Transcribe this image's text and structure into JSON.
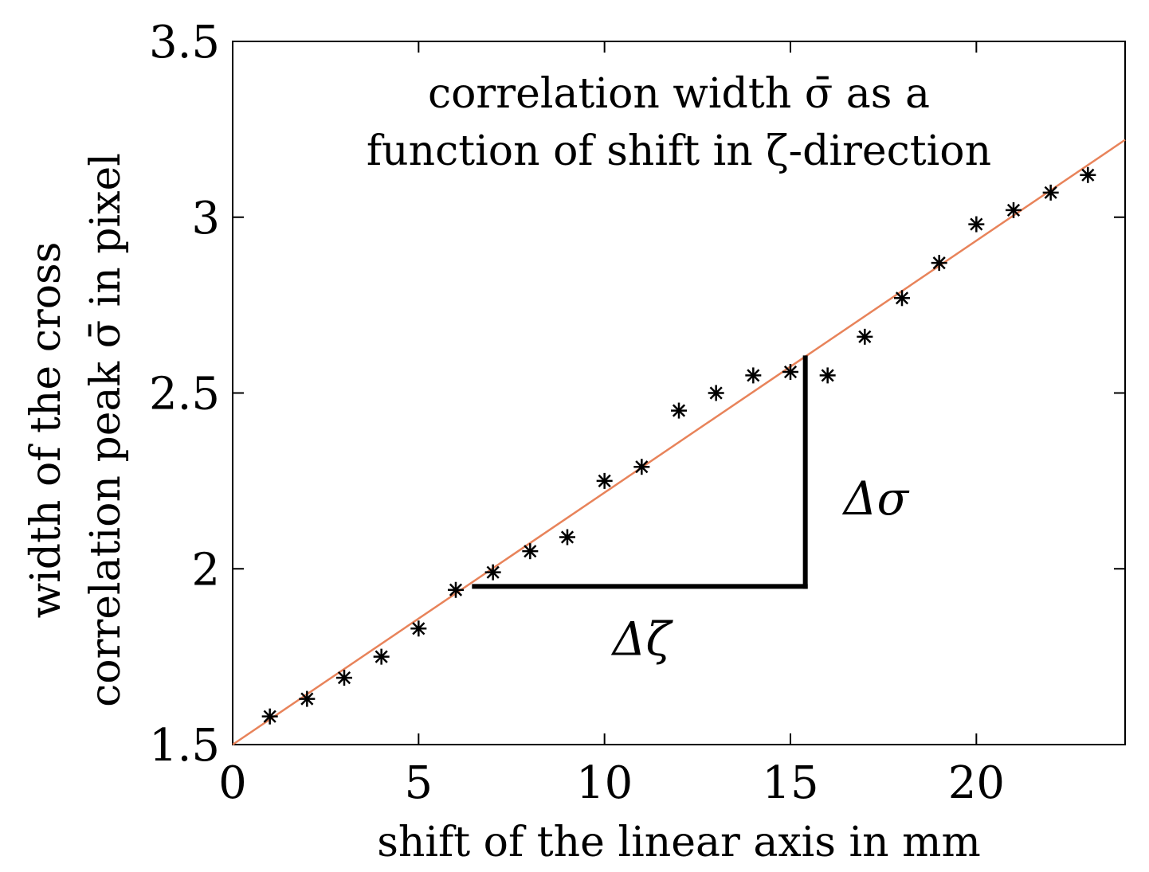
{
  "chart_data": {
    "type": "scatter",
    "title_lines": [
      "correlation width σ̄  as a",
      "function of shift in ζ-direction"
    ],
    "xlabel": "shift of the linear axis in mm",
    "ylabel_lines": [
      "width of the cross",
      "correlation peak σ̄ in pixel"
    ],
    "xlim": [
      0,
      24
    ],
    "ylim": [
      1.5,
      3.5
    ],
    "xticks": [
      0,
      5,
      10,
      15,
      20
    ],
    "yticks": [
      1.5,
      2,
      2.5,
      3,
      3.5
    ],
    "xtick_labels": [
      "0",
      "5",
      "10",
      "15",
      "20"
    ],
    "ytick_labels": [
      "1.5",
      "2",
      "2.5",
      "3",
      "3.5"
    ],
    "grid": false,
    "series": [
      {
        "type": "scatter",
        "marker": "*",
        "color": "#000000",
        "x": [
          1,
          2,
          3,
          4,
          5,
          6,
          7,
          8,
          9,
          10,
          11,
          12,
          13,
          14,
          15,
          16,
          17,
          18,
          19,
          20,
          21,
          22,
          23
        ],
        "y": [
          1.58,
          1.63,
          1.69,
          1.75,
          1.83,
          1.94,
          1.99,
          2.05,
          2.09,
          2.25,
          2.29,
          2.45,
          2.5,
          2.55,
          2.56,
          2.55,
          2.66,
          2.77,
          2.87,
          2.98,
          3.02,
          3.07,
          3.12
        ]
      },
      {
        "type": "line",
        "color": "#e8835a",
        "x": [
          0,
          24
        ],
        "y": [
          1.5,
          3.22
        ]
      }
    ],
    "annotations": [
      {
        "type": "segment",
        "x": [
          6.5,
          15.4
        ],
        "y": [
          1.95,
          1.95
        ]
      },
      {
        "type": "segment",
        "x": [
          15.4,
          15.4
        ],
        "y": [
          1.95,
          2.6
        ]
      },
      {
        "text": "Δζ",
        "x": 11.0,
        "y": 1.8
      },
      {
        "text": "Δσ",
        "x": 17.3,
        "y": 2.2
      }
    ]
  }
}
